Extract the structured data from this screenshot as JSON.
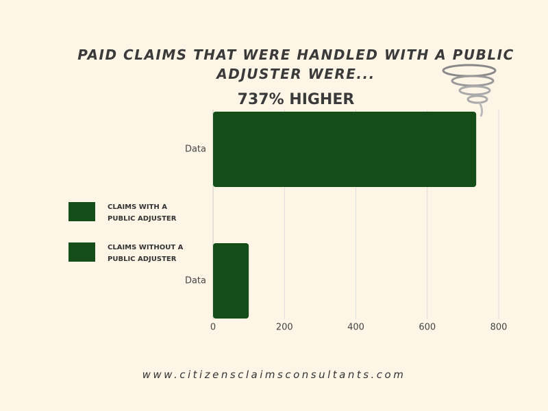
{
  "chart_data": {
    "type": "bar",
    "orientation": "horizontal",
    "title": "PAID CLAIMS THAT WERE HANDLED WITH A PUBLIC ADJUSTER WERE...",
    "annotation": "737% HIGHER",
    "categories": [
      "Data",
      "Data"
    ],
    "series": [
      {
        "name": "CLAIMS WITH A PUBLIC ADJUSTER",
        "color": "#154d19",
        "values": [
          737,
          null
        ]
      },
      {
        "name": "CLAIMS WITHOUT A PUBLIC ADJUSTER",
        "color": "#154d19",
        "values": [
          null,
          100
        ]
      }
    ],
    "xlim": [
      0,
      800
    ],
    "xticks": [
      0,
      200,
      400,
      600,
      800
    ],
    "grid": true,
    "legend": "left",
    "footer": "www.citizensclaimsconsultants.com"
  }
}
